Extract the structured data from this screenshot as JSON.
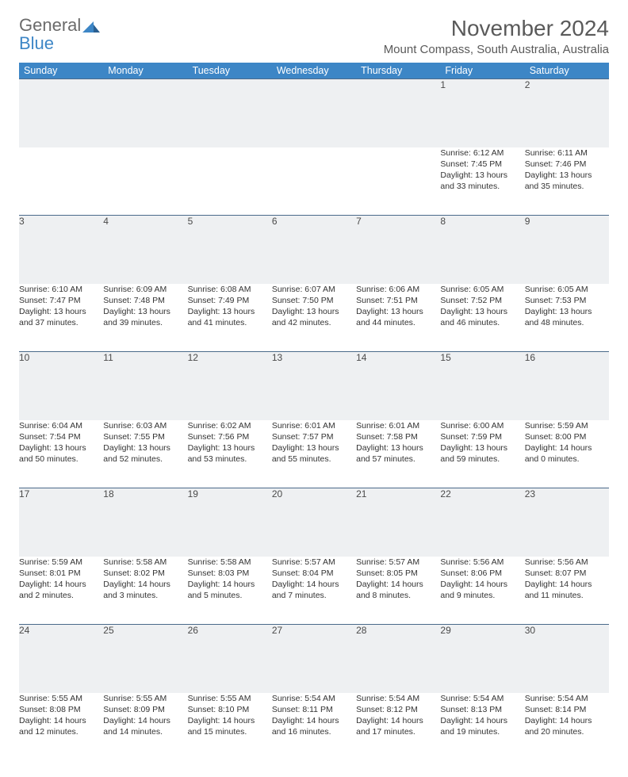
{
  "logo": {
    "line1": "General",
    "line2": "Blue"
  },
  "title": "November 2024",
  "location": "Mount Compass, South Australia, Australia",
  "colors": {
    "header_bg": "#3d86c6",
    "header_text": "#ffffff",
    "daynum_bg": "#eef0f2",
    "logo_gray": "#6b6b6b",
    "logo_blue": "#3d86c6",
    "row_border": "#4a6a8a"
  },
  "weekdays": [
    "Sunday",
    "Monday",
    "Tuesday",
    "Wednesday",
    "Thursday",
    "Friday",
    "Saturday"
  ],
  "weeks": [
    [
      null,
      null,
      null,
      null,
      null,
      {
        "n": "1",
        "sr": "Sunrise: 6:12 AM",
        "ss": "Sunset: 7:45 PM",
        "d1": "Daylight: 13 hours",
        "d2": "and 33 minutes."
      },
      {
        "n": "2",
        "sr": "Sunrise: 6:11 AM",
        "ss": "Sunset: 7:46 PM",
        "d1": "Daylight: 13 hours",
        "d2": "and 35 minutes."
      }
    ],
    [
      {
        "n": "3",
        "sr": "Sunrise: 6:10 AM",
        "ss": "Sunset: 7:47 PM",
        "d1": "Daylight: 13 hours",
        "d2": "and 37 minutes."
      },
      {
        "n": "4",
        "sr": "Sunrise: 6:09 AM",
        "ss": "Sunset: 7:48 PM",
        "d1": "Daylight: 13 hours",
        "d2": "and 39 minutes."
      },
      {
        "n": "5",
        "sr": "Sunrise: 6:08 AM",
        "ss": "Sunset: 7:49 PM",
        "d1": "Daylight: 13 hours",
        "d2": "and 41 minutes."
      },
      {
        "n": "6",
        "sr": "Sunrise: 6:07 AM",
        "ss": "Sunset: 7:50 PM",
        "d1": "Daylight: 13 hours",
        "d2": "and 42 minutes."
      },
      {
        "n": "7",
        "sr": "Sunrise: 6:06 AM",
        "ss": "Sunset: 7:51 PM",
        "d1": "Daylight: 13 hours",
        "d2": "and 44 minutes."
      },
      {
        "n": "8",
        "sr": "Sunrise: 6:05 AM",
        "ss": "Sunset: 7:52 PM",
        "d1": "Daylight: 13 hours",
        "d2": "and 46 minutes."
      },
      {
        "n": "9",
        "sr": "Sunrise: 6:05 AM",
        "ss": "Sunset: 7:53 PM",
        "d1": "Daylight: 13 hours",
        "d2": "and 48 minutes."
      }
    ],
    [
      {
        "n": "10",
        "sr": "Sunrise: 6:04 AM",
        "ss": "Sunset: 7:54 PM",
        "d1": "Daylight: 13 hours",
        "d2": "and 50 minutes."
      },
      {
        "n": "11",
        "sr": "Sunrise: 6:03 AM",
        "ss": "Sunset: 7:55 PM",
        "d1": "Daylight: 13 hours",
        "d2": "and 52 minutes."
      },
      {
        "n": "12",
        "sr": "Sunrise: 6:02 AM",
        "ss": "Sunset: 7:56 PM",
        "d1": "Daylight: 13 hours",
        "d2": "and 53 minutes."
      },
      {
        "n": "13",
        "sr": "Sunrise: 6:01 AM",
        "ss": "Sunset: 7:57 PM",
        "d1": "Daylight: 13 hours",
        "d2": "and 55 minutes."
      },
      {
        "n": "14",
        "sr": "Sunrise: 6:01 AM",
        "ss": "Sunset: 7:58 PM",
        "d1": "Daylight: 13 hours",
        "d2": "and 57 minutes."
      },
      {
        "n": "15",
        "sr": "Sunrise: 6:00 AM",
        "ss": "Sunset: 7:59 PM",
        "d1": "Daylight: 13 hours",
        "d2": "and 59 minutes."
      },
      {
        "n": "16",
        "sr": "Sunrise: 5:59 AM",
        "ss": "Sunset: 8:00 PM",
        "d1": "Daylight: 14 hours",
        "d2": "and 0 minutes."
      }
    ],
    [
      {
        "n": "17",
        "sr": "Sunrise: 5:59 AM",
        "ss": "Sunset: 8:01 PM",
        "d1": "Daylight: 14 hours",
        "d2": "and 2 minutes."
      },
      {
        "n": "18",
        "sr": "Sunrise: 5:58 AM",
        "ss": "Sunset: 8:02 PM",
        "d1": "Daylight: 14 hours",
        "d2": "and 3 minutes."
      },
      {
        "n": "19",
        "sr": "Sunrise: 5:58 AM",
        "ss": "Sunset: 8:03 PM",
        "d1": "Daylight: 14 hours",
        "d2": "and 5 minutes."
      },
      {
        "n": "20",
        "sr": "Sunrise: 5:57 AM",
        "ss": "Sunset: 8:04 PM",
        "d1": "Daylight: 14 hours",
        "d2": "and 7 minutes."
      },
      {
        "n": "21",
        "sr": "Sunrise: 5:57 AM",
        "ss": "Sunset: 8:05 PM",
        "d1": "Daylight: 14 hours",
        "d2": "and 8 minutes."
      },
      {
        "n": "22",
        "sr": "Sunrise: 5:56 AM",
        "ss": "Sunset: 8:06 PM",
        "d1": "Daylight: 14 hours",
        "d2": "and 9 minutes."
      },
      {
        "n": "23",
        "sr": "Sunrise: 5:56 AM",
        "ss": "Sunset: 8:07 PM",
        "d1": "Daylight: 14 hours",
        "d2": "and 11 minutes."
      }
    ],
    [
      {
        "n": "24",
        "sr": "Sunrise: 5:55 AM",
        "ss": "Sunset: 8:08 PM",
        "d1": "Daylight: 14 hours",
        "d2": "and 12 minutes."
      },
      {
        "n": "25",
        "sr": "Sunrise: 5:55 AM",
        "ss": "Sunset: 8:09 PM",
        "d1": "Daylight: 14 hours",
        "d2": "and 14 minutes."
      },
      {
        "n": "26",
        "sr": "Sunrise: 5:55 AM",
        "ss": "Sunset: 8:10 PM",
        "d1": "Daylight: 14 hours",
        "d2": "and 15 minutes."
      },
      {
        "n": "27",
        "sr": "Sunrise: 5:54 AM",
        "ss": "Sunset: 8:11 PM",
        "d1": "Daylight: 14 hours",
        "d2": "and 16 minutes."
      },
      {
        "n": "28",
        "sr": "Sunrise: 5:54 AM",
        "ss": "Sunset: 8:12 PM",
        "d1": "Daylight: 14 hours",
        "d2": "and 17 minutes."
      },
      {
        "n": "29",
        "sr": "Sunrise: 5:54 AM",
        "ss": "Sunset: 8:13 PM",
        "d1": "Daylight: 14 hours",
        "d2": "and 19 minutes."
      },
      {
        "n": "30",
        "sr": "Sunrise: 5:54 AM",
        "ss": "Sunset: 8:14 PM",
        "d1": "Daylight: 14 hours",
        "d2": "and 20 minutes."
      }
    ]
  ]
}
